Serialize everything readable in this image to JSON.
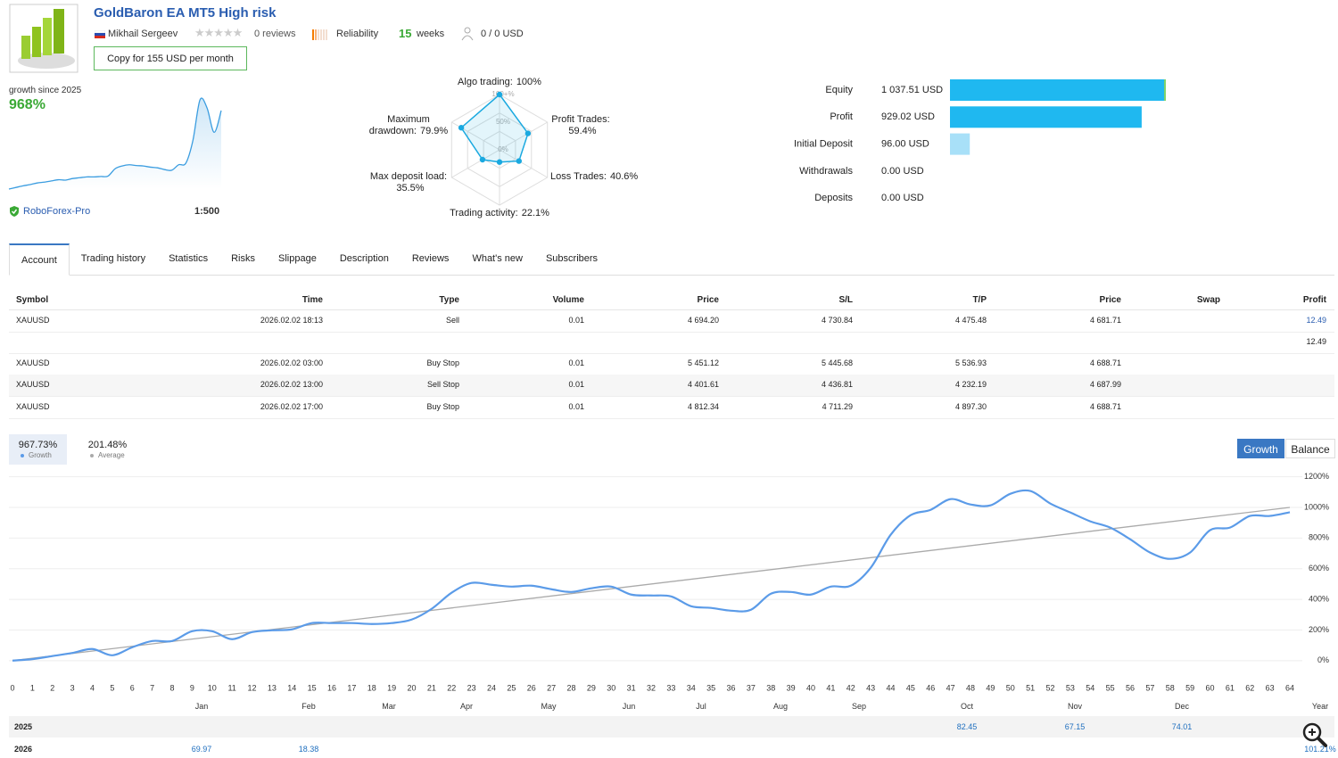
{
  "header": {
    "title": "GoldBaron EA MT5 High risk",
    "author": "Mikhail Sergeev",
    "reviews": "0 reviews",
    "reliability": "Reliability",
    "weeks_count": 15,
    "weeks_label": "weeks",
    "subscribers": "0 / 0 USD",
    "copy_button": "Copy for 155 USD per month"
  },
  "summary": {
    "broker": "RoboForex-Pro",
    "leverage": "1:500"
  },
  "chart_data": [
    {
      "type": "sparkline",
      "title": "growth since 2025",
      "value_label": "968%",
      "color": "#3b9de0",
      "values": [
        0,
        20,
        40,
        55,
        75,
        85,
        100,
        115,
        110,
        130,
        140,
        150,
        150,
        155,
        160,
        250,
        285,
        300,
        290,
        285,
        270,
        262,
        240,
        232,
        300,
        320,
        600,
        1100,
        1000,
        700,
        968
      ]
    },
    {
      "type": "radar",
      "color": "#1aa9e0",
      "rings": [
        {
          "value": 100,
          "label": "100+%"
        },
        {
          "value": 50,
          "label": "50%"
        },
        {
          "value": 0,
          "label": "0%"
        }
      ],
      "axes": [
        {
          "name": "Algo trading:",
          "value": 100,
          "value_label": "100%"
        },
        {
          "name": "Profit Trades:",
          "value": 59.4,
          "value_label": "59.4%"
        },
        {
          "name": "Loss Trades:",
          "value": 40.6,
          "value_label": "40.6%"
        },
        {
          "name": "Trading activity:",
          "value": 22.1,
          "value_label": "22.1%"
        },
        {
          "name": "Max deposit load:",
          "value": 35.5,
          "value_label": "35.5%"
        },
        {
          "name": "Maximum drawdown:",
          "value": 79.9,
          "value_label": "79.9%"
        }
      ]
    },
    {
      "type": "hbar",
      "categories": [
        "Equity",
        "Profit",
        "Initial Deposit",
        "Withdrawals",
        "Deposits"
      ],
      "values": [
        1037.51,
        929.02,
        96.0,
        0,
        0
      ],
      "value_labels": [
        "1 037.51 USD",
        "929.02 USD",
        "96.00 USD",
        "0.00 USD",
        "0.00 USD"
      ],
      "colors": [
        "#1fb8f0",
        "#1fb8f0",
        "#a8e0f8",
        "#1fb8f0",
        "#1fb8f0"
      ]
    },
    {
      "type": "line",
      "buttons": [
        "Growth",
        "Balance"
      ],
      "x": [
        0,
        1,
        2,
        3,
        4,
        5,
        6,
        7,
        8,
        9,
        10,
        11,
        12,
        13,
        14,
        15,
        16,
        17,
        18,
        19,
        20,
        21,
        22,
        23,
        24,
        25,
        26,
        27,
        28,
        29,
        30,
        31,
        32,
        33,
        34,
        35,
        36,
        37,
        38,
        39,
        40,
        41,
        42,
        43,
        44,
        45,
        46,
        47,
        48,
        49,
        50,
        51,
        52,
        53,
        54,
        55,
        56,
        57,
        58,
        59,
        60,
        61,
        62,
        63,
        64
      ],
      "series": [
        {
          "name": "Growth",
          "summary": "967.73%",
          "color": "#5b9be8",
          "values": [
            0,
            10,
            30,
            50,
            76,
            35,
            87,
            128,
            128,
            192,
            192,
            140,
            186,
            198,
            204,
            245,
            245,
            245,
            239,
            245,
            268,
            338,
            443,
            507,
            495,
            483,
            489,
            466,
            448,
            472,
            483,
            431,
            425,
            419,
            355,
            344,
            326,
            332,
            437,
            448,
            431,
            483,
            489,
            606,
            821,
            949,
            984,
            1054,
            1019,
            1013,
            1089,
            1107,
            1025,
            967,
            909,
            868,
            792,
            705,
            664,
            705,
            851,
            868,
            944,
            944,
            968
          ]
        },
        {
          "name": "Average",
          "summary": "201.48%",
          "color": "#aaaaaa",
          "x": [
            0,
            64
          ],
          "values": [
            0,
            1000
          ]
        }
      ],
      "xlim": [
        0,
        64
      ],
      "xticks": [
        0,
        1,
        2,
        3,
        4,
        5,
        6,
        7,
        8,
        9,
        10,
        11,
        12,
        13,
        14,
        15,
        16,
        17,
        18,
        19,
        20,
        21,
        22,
        23,
        24,
        25,
        26,
        27,
        28,
        29,
        30,
        31,
        32,
        33,
        34,
        35,
        36,
        37,
        38,
        39,
        40,
        41,
        42,
        43,
        44,
        45,
        46,
        47,
        48,
        49,
        50,
        51,
        52,
        53,
        54,
        55,
        56,
        57,
        58,
        59,
        60,
        61,
        62,
        63,
        64
      ],
      "ylim": [
        -100,
        1250
      ],
      "yticks": [
        {
          "value": 0,
          "label": "0%"
        },
        {
          "value": 200,
          "label": "200%"
        },
        {
          "value": 400,
          "label": "400%"
        },
        {
          "value": 600,
          "label": "600%"
        },
        {
          "value": 800,
          "label": "800%"
        },
        {
          "value": 1000,
          "label": "1000%"
        },
        {
          "value": 1200,
          "label": "1200%"
        }
      ],
      "grid": true
    }
  ],
  "tabs": [
    "Account",
    "Trading history",
    "Statistics",
    "Risks",
    "Slippage",
    "Description",
    "Reviews",
    "What's new",
    "Subscribers"
  ],
  "positions": {
    "columns": [
      "Symbol",
      "Time",
      "Type",
      "Volume",
      "Price",
      "S/L",
      "T/P",
      "Price",
      "Swap",
      "Profit"
    ],
    "rows": [
      [
        "XAUUSD",
        "2026.02.02 18:13",
        "Sell",
        "0.01",
        "4 694.20",
        "4 730.84",
        "4 475.48",
        "4 681.71",
        null,
        "12.49"
      ],
      [
        null,
        null,
        null,
        null,
        null,
        null,
        null,
        null,
        null,
        "12.49"
      ],
      [
        "XAUUSD",
        "2026.02.02 03:00",
        "Buy Stop",
        "0.01",
        "5 451.12",
        "5 445.68",
        "5 536.93",
        "4 688.71",
        null,
        null
      ],
      [
        "XAUUSD",
        "2026.02.02 13:00",
        "Sell Stop",
        "0.01",
        "4 401.61",
        "4 436.81",
        "4 232.19",
        "4 687.99",
        null,
        null
      ],
      [
        "XAUUSD",
        "2026.02.02 17:00",
        "Buy Stop",
        "0.01",
        "4 812.34",
        "4 711.29",
        "4 897.30",
        "4 688.71",
        null,
        null
      ]
    ]
  },
  "monthly_returns": {
    "columns": [
      "Jan",
      "Feb",
      "Mar",
      "Apr",
      "May",
      "Jun",
      "Jul",
      "Aug",
      "Sep",
      "Oct",
      "Nov",
      "Dec",
      "Year"
    ],
    "rows": [
      {
        "year": "2025",
        "values": [
          null,
          null,
          null,
          null,
          null,
          null,
          null,
          null,
          null,
          82.45,
          67.15,
          74.01,
          null
        ]
      },
      {
        "year": "2026",
        "values": [
          69.97,
          18.38,
          null,
          null,
          null,
          null,
          null,
          null,
          null,
          null,
          null,
          null,
          "101.21%"
        ]
      }
    ]
  }
}
